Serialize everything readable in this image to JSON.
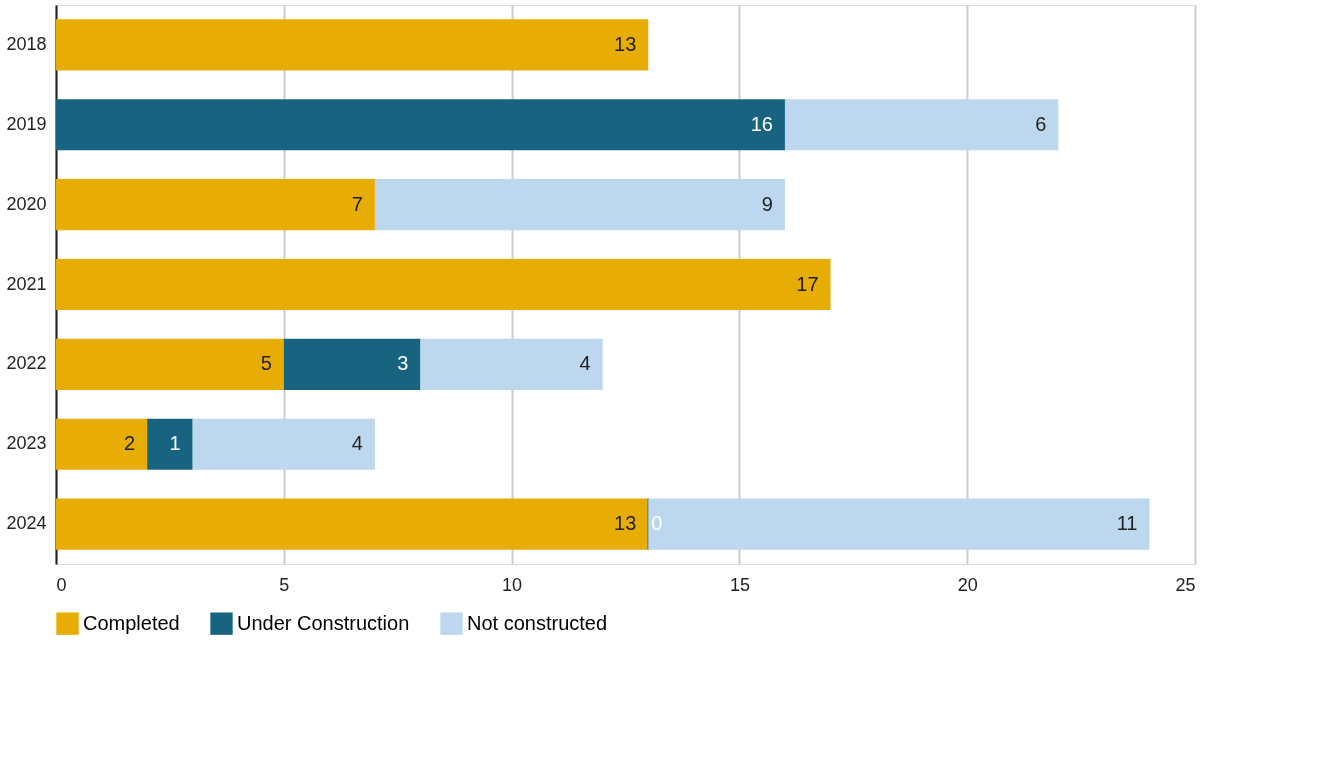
{
  "chart_data": {
    "type": "bar",
    "orientation": "horizontal",
    "stacked": true,
    "categories": [
      "2018",
      "2019",
      "2020",
      "2021",
      "2022",
      "2023",
      "2024"
    ],
    "series": [
      {
        "name": "Completed",
        "color": "#e8ad05",
        "values": [
          13,
          null,
          7,
          17,
          5,
          2,
          13
        ]
      },
      {
        "name": "Under Construction",
        "color": "#186480",
        "values": [
          null,
          16,
          null,
          null,
          3,
          1,
          0
        ]
      },
      {
        "name": "Not constructed",
        "color": "#bcd7ee",
        "values": [
          null,
          6,
          9,
          null,
          4,
          4,
          11
        ]
      }
    ],
    "xlim": [
      0,
      25
    ],
    "xticks": [
      0,
      5,
      10,
      15,
      20,
      25
    ],
    "grid": "x",
    "legend": "bottom",
    "data_labels": true
  }
}
